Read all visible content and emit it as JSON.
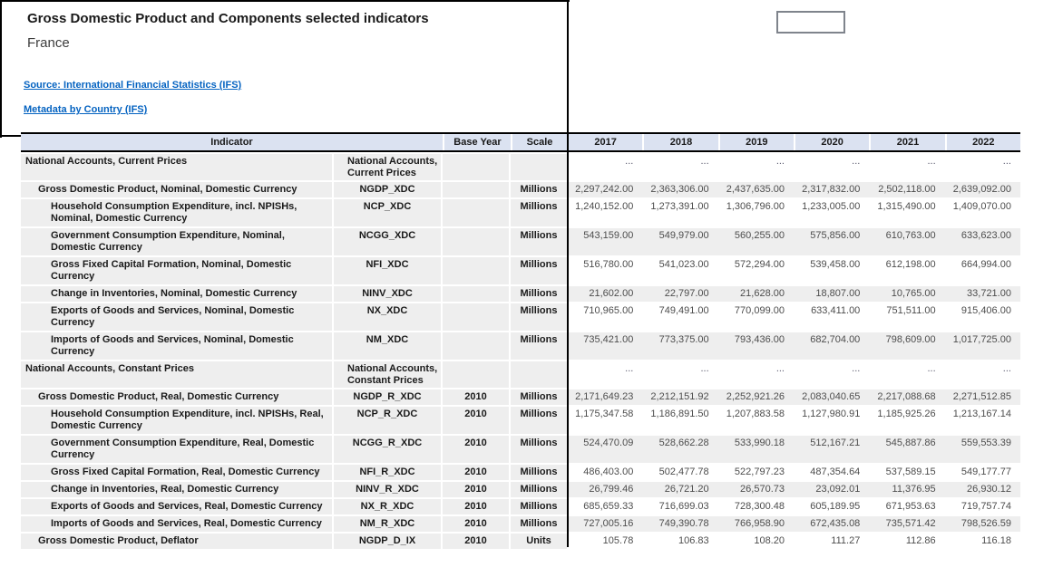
{
  "page": {
    "title": "Gross Domestic Product and Components selected indicators",
    "country": "France",
    "links": [
      {
        "label": "Source: International Financial Statistics (IFS)"
      },
      {
        "label": "Metadata by Country (IFS)"
      }
    ],
    "colors": {
      "header_bg": "#dbe2f1",
      "row_bg": "#eeeeee",
      "link_blue": "#0563c1",
      "divider": "#000000"
    }
  },
  "table": {
    "header": {
      "indicator": "Indicator",
      "base_year": "Base Year",
      "scale": "Scale"
    },
    "years": [
      "2017",
      "2018",
      "2019",
      "2020",
      "2021",
      "2022"
    ],
    "rows": [
      {
        "section": true,
        "indent": 0,
        "indicator": "National Accounts, Current Prices",
        "code": "National Accounts, Current Prices",
        "base_year": "",
        "scale": "",
        "tall": true,
        "values": [
          "...",
          "...",
          "...",
          "...",
          "...",
          "..."
        ]
      },
      {
        "section": false,
        "indent": 1,
        "indicator": "Gross Domestic Product, Nominal, Domestic Currency",
        "code": "NGDP_XDC",
        "base_year": "",
        "scale": "Millions",
        "tall": false,
        "values": [
          "2,297,242.00",
          "2,363,306.00",
          "2,437,635.00",
          "2,317,832.00",
          "2,502,118.00",
          "2,639,092.00"
        ]
      },
      {
        "section": false,
        "indent": 2,
        "indicator": "Household Consumption Expenditure, incl. NPISHs, Nominal, Domestic Currency",
        "code": "NCP_XDC",
        "base_year": "",
        "scale": "Millions",
        "tall": true,
        "values": [
          "1,240,152.00",
          "1,273,391.00",
          "1,306,796.00",
          "1,233,005.00",
          "1,315,490.00",
          "1,409,070.00"
        ]
      },
      {
        "section": false,
        "indent": 2,
        "indicator": "Government Consumption Expenditure, Nominal, Domestic Currency",
        "code": "NCGG_XDC",
        "base_year": "",
        "scale": "Millions",
        "tall": true,
        "values": [
          "543,159.00",
          "549,979.00",
          "560,255.00",
          "575,856.00",
          "610,763.00",
          "633,623.00"
        ]
      },
      {
        "section": false,
        "indent": 2,
        "indicator": "Gross Fixed Capital Formation, Nominal, Domestic Currency",
        "code": "NFI_XDC",
        "base_year": "",
        "scale": "Millions",
        "tall": true,
        "values": [
          "516,780.00",
          "541,023.00",
          "572,294.00",
          "539,458.00",
          "612,198.00",
          "664,994.00"
        ]
      },
      {
        "section": false,
        "indent": 2,
        "indicator": "Change in Inventories, Nominal, Domestic Currency",
        "code": "NINV_XDC",
        "base_year": "",
        "scale": "Millions",
        "tall": false,
        "values": [
          "21,602.00",
          "22,797.00",
          "21,628.00",
          "18,807.00",
          "10,765.00",
          "33,721.00"
        ]
      },
      {
        "section": false,
        "indent": 2,
        "indicator": "Exports of Goods and Services, Nominal, Domestic Currency",
        "code": "NX_XDC",
        "base_year": "",
        "scale": "Millions",
        "tall": true,
        "values": [
          "710,965.00",
          "749,491.00",
          "770,099.00",
          "633,411.00",
          "751,511.00",
          "915,406.00"
        ]
      },
      {
        "section": false,
        "indent": 2,
        "indicator": "Imports of Goods and Services, Nominal, Domestic Currency",
        "code": "NM_XDC",
        "base_year": "",
        "scale": "Millions",
        "tall": true,
        "values": [
          "735,421.00",
          "773,375.00",
          "793,436.00",
          "682,704.00",
          "798,609.00",
          "1,017,725.00"
        ]
      },
      {
        "section": true,
        "indent": 0,
        "indicator": "National Accounts, Constant Prices",
        "code": "National Accounts, Constant Prices",
        "base_year": "",
        "scale": "",
        "tall": true,
        "values": [
          "...",
          "...",
          "...",
          "...",
          "...",
          "..."
        ]
      },
      {
        "section": false,
        "indent": 1,
        "indicator": "Gross Domestic Product, Real, Domestic Currency",
        "code": "NGDP_R_XDC",
        "base_year": "2010",
        "scale": "Millions",
        "tall": false,
        "values": [
          "2,171,649.23",
          "2,212,151.92",
          "2,252,921.26",
          "2,083,040.65",
          "2,217,088.68",
          "2,271,512.85"
        ]
      },
      {
        "section": false,
        "indent": 2,
        "indicator": "Household Consumption Expenditure, incl. NPISHs, Real, Domestic Currency",
        "code": "NCP_R_XDC",
        "base_year": "2010",
        "scale": "Millions",
        "tall": true,
        "values": [
          "1,175,347.58",
          "1,186,891.50",
          "1,207,883.58",
          "1,127,980.91",
          "1,185,925.26",
          "1,213,167.14"
        ]
      },
      {
        "section": false,
        "indent": 2,
        "indicator": "Government Consumption Expenditure, Real, Domestic Currency",
        "code": "NCGG_R_XDC",
        "base_year": "2010",
        "scale": "Millions",
        "tall": true,
        "values": [
          "524,470.09",
          "528,662.28",
          "533,990.18",
          "512,167.21",
          "545,887.86",
          "559,553.39"
        ]
      },
      {
        "section": false,
        "indent": 2,
        "indicator": "Gross Fixed Capital Formation, Real, Domestic Currency",
        "code": "NFI_R_XDC",
        "base_year": "2010",
        "scale": "Millions",
        "tall": false,
        "values": [
          "486,403.00",
          "502,477.78",
          "522,797.23",
          "487,354.64",
          "537,589.15",
          "549,177.77"
        ]
      },
      {
        "section": false,
        "indent": 2,
        "indicator": "Change in Inventories, Real, Domestic Currency",
        "code": "NINV_R_XDC",
        "base_year": "2010",
        "scale": "Millions",
        "tall": false,
        "values": [
          "26,799.46",
          "26,721.20",
          "26,570.73",
          "23,092.01",
          "11,376.95",
          "26,930.12"
        ]
      },
      {
        "section": false,
        "indent": 2,
        "indicator": "Exports of Goods and Services, Real, Domestic Currency",
        "code": "NX_R_XDC",
        "base_year": "2010",
        "scale": "Millions",
        "tall": false,
        "values": [
          "685,659.33",
          "716,699.03",
          "728,300.48",
          "605,189.95",
          "671,953.63",
          "719,757.74"
        ]
      },
      {
        "section": false,
        "indent": 2,
        "indicator": "Imports of Goods and Services, Real, Domestic Currency",
        "code": "NM_R_XDC",
        "base_year": "2010",
        "scale": "Millions",
        "tall": false,
        "values": [
          "727,005.16",
          "749,390.78",
          "766,958.90",
          "672,435.08",
          "735,571.42",
          "798,526.59"
        ]
      },
      {
        "section": false,
        "indent": 1,
        "indicator": "Gross Domestic Product, Deflator",
        "code": "NGDP_D_IX",
        "base_year": "2010",
        "scale": "Units",
        "tall": false,
        "values": [
          "105.78",
          "106.83",
          "108.20",
          "111.27",
          "112.86",
          "116.18"
        ]
      }
    ]
  }
}
